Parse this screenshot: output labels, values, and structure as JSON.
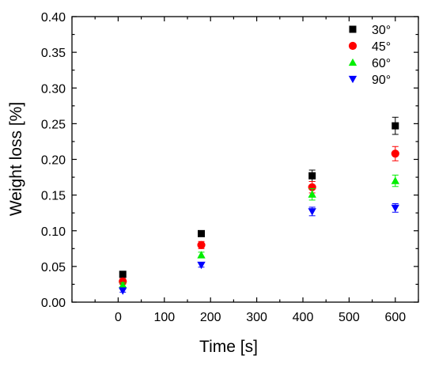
{
  "chart_data": {
    "type": "scatter",
    "title": "",
    "xlabel": "Time [s]",
    "ylabel": "Weight loss [%]",
    "xlim": [
      -100,
      650
    ],
    "ylim": [
      0,
      0.4
    ],
    "xticks": [
      0,
      100,
      200,
      300,
      400,
      500,
      600
    ],
    "xtick_labels": [
      "0",
      "100",
      "200",
      "300",
      "400",
      "500",
      "600"
    ],
    "yticks": [
      0,
      0.05,
      0.1,
      0.15,
      0.2,
      0.25,
      0.3,
      0.35,
      0.4
    ],
    "ytick_labels": [
      "0.00",
      "0.05",
      "0.10",
      "0.15",
      "0.20",
      "0.25",
      "0.30",
      "0.35",
      "0.40"
    ],
    "grid": false,
    "legend_position": "top-right",
    "series": [
      {
        "name": "30°",
        "marker": "square",
        "color": "#000000",
        "x": [
          10,
          180,
          420,
          600
        ],
        "y": [
          0.039,
          0.096,
          0.177,
          0.247
        ],
        "yerr": [
          0.004,
          0.003,
          0.008,
          0.012
        ]
      },
      {
        "name": "45°",
        "marker": "circle",
        "color": "#ff0000",
        "x": [
          10,
          180,
          420,
          600
        ],
        "y": [
          0.029,
          0.08,
          0.161,
          0.208
        ],
        "yerr": [
          0.004,
          0.005,
          0.008,
          0.01
        ]
      },
      {
        "name": "60°",
        "marker": "triangle-up",
        "color": "#00ee00",
        "x": [
          10,
          180,
          420,
          600
        ],
        "y": [
          0.024,
          0.066,
          0.151,
          0.17
        ],
        "yerr": [
          0.003,
          0.004,
          0.008,
          0.008
        ]
      },
      {
        "name": "90°",
        "marker": "triangle-down",
        "color": "#0000ff",
        "x": [
          10,
          180,
          420,
          600
        ],
        "y": [
          0.016,
          0.052,
          0.127,
          0.132
        ],
        "yerr": [
          0.002,
          0.003,
          0.006,
          0.006
        ]
      }
    ]
  }
}
